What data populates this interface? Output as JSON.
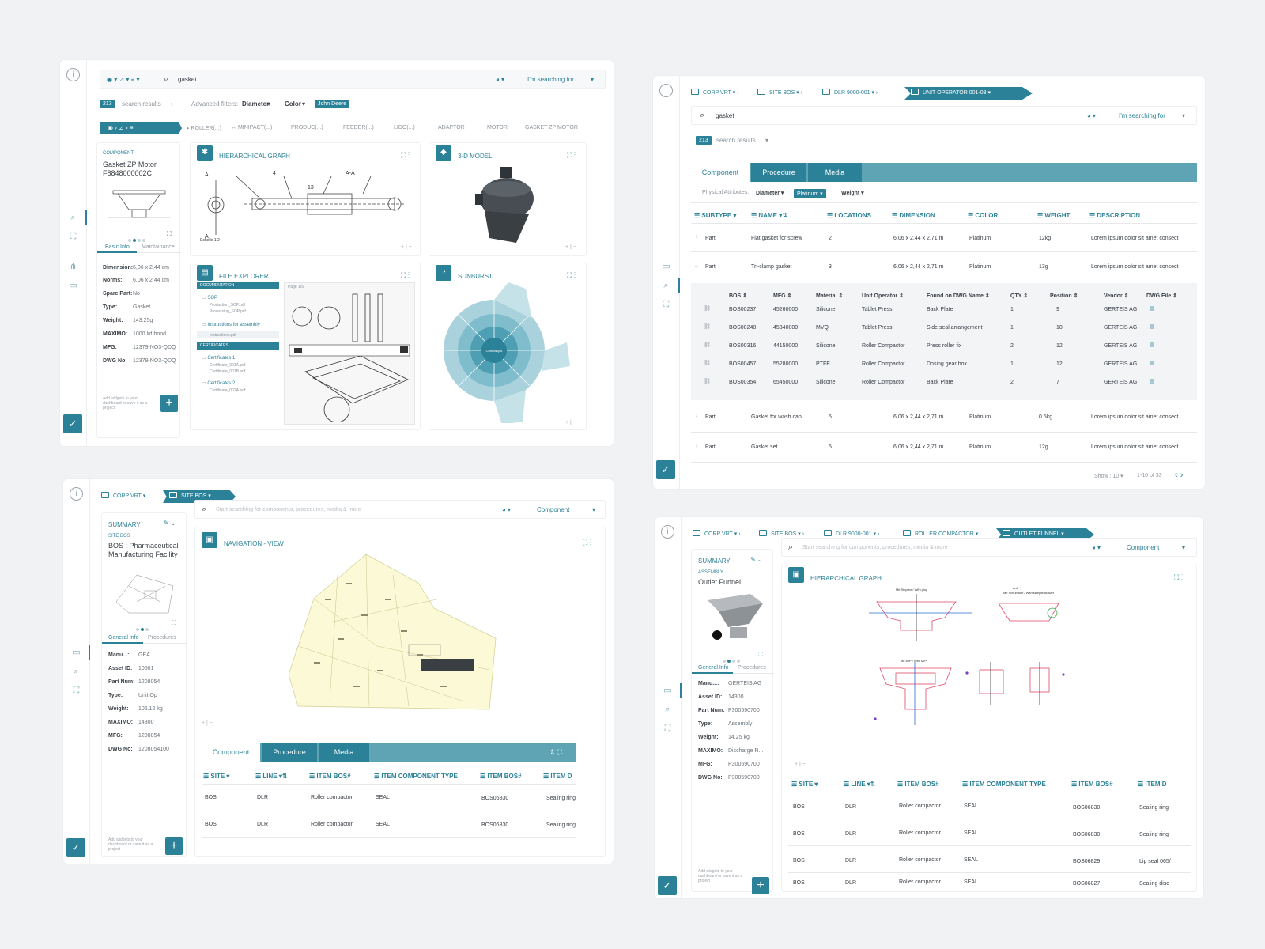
{
  "colors": {
    "accent": "#2b8197",
    "background": "#f1f2f4"
  },
  "p1": {
    "search": {
      "value": "gasket",
      "searching_for": "I'm searching for"
    },
    "results": {
      "count": "213",
      "label": "search results",
      "adv_label": "Advanced filters:",
      "filters": [
        "Diameter",
        "Color"
      ],
      "active_filter": "John Deere"
    },
    "crumbs": [
      "ROLLER(...)",
      "MINIPACT(...)",
      "PRODUC(...)",
      "FEEDER(...)",
      "LIDO(...)",
      "ADAPTOR",
      "MOTOR",
      "GASKET ZP MOTOR"
    ],
    "component": {
      "type": "COMPONENT",
      "title": "Gasket ZP Motor F8848000002C",
      "tabs": [
        "Basic Info",
        "Maintainance"
      ],
      "props": [
        [
          "Dimension:",
          "6,06 x 2,44 cm"
        ],
        [
          "Norms:",
          "6,06 x 2,44 cm"
        ],
        [
          "Spare Part:",
          "No"
        ],
        [
          "Type:",
          "Gasket"
        ],
        [
          "Weight:",
          "143.25g"
        ],
        [
          "MAXIMO:",
          "1000 lid bond"
        ],
        [
          "MFG:",
          "12379-NO3-QDQ"
        ],
        [
          "DWG No:",
          "12379-NO3-QDQ"
        ]
      ],
      "hint": "Add widgets to your dashboard or save it as a project"
    },
    "cards": {
      "graph": "HIERARCHICAL GRAPH",
      "model": "3-D MODEL",
      "files": "FILE EXPLORER",
      "sunburst": "SUNBURST"
    },
    "files": {
      "sec1": "DOCUMENTATION",
      "items1": [
        "SOP",
        "Production_SOP.pdf",
        "Processing_SOP.pdf",
        "Instructions for assembly",
        "Instructions.pdf"
      ],
      "sec2": "CERTIFICATES",
      "items2": [
        "Certificates 1",
        "Certificate_001A.pdf",
        "Certificate_001B.pdf",
        "Certificates 2",
        "Certificate_002A.pdf"
      ],
      "page": "Page 1/5"
    },
    "sunburst_center": "Company A"
  },
  "p2": {
    "crumbs": [
      "CORP VRT",
      "SITE BOS",
      "DLR 9000-001",
      "UNIT OPERATOR 001-03"
    ],
    "search": {
      "value": "gasket",
      "searching_for": "I'm searching for"
    },
    "results": {
      "count": "213",
      "label": "search results"
    },
    "tabs": [
      "Component",
      "Procedure",
      "Media"
    ],
    "physical": {
      "label": "Physical Attributes:",
      "filters": [
        "Diameter",
        "Weight"
      ],
      "active": "Platinum"
    },
    "headers": [
      "SUBTYPE",
      "NAME",
      "LOCATIONS",
      "DIMENSION",
      "COLOR",
      "WEIGHT",
      "DESCRIPTION"
    ],
    "rows": [
      {
        "subtype": "Part",
        "name": "Flat gasket for screw",
        "loc": "2",
        "dim": "6,06 x 2,44 x 2,71 m",
        "color": "Platinum",
        "weight": "12kg",
        "desc": "Lorem ipsum dolor sit amet consect"
      },
      {
        "subtype": "Part",
        "name": "Tri-clamp gasket",
        "loc": "3",
        "dim": "6,06 x 2,44 x 2,71 m",
        "color": "Platinum",
        "weight": "13g",
        "desc": "Lorem ipsum dolor sit amet consect"
      },
      {
        "subtype": "Part",
        "name": "Gasket for wash cap",
        "loc": "5",
        "dim": "6,06 x 2,44 x 2,71 m",
        "color": "Platinum",
        "weight": "0.5kg",
        "desc": "Lorem ipsum dolor sit amet consect"
      },
      {
        "subtype": "Part",
        "name": "Gasket set",
        "loc": "5",
        "dim": "6,06 x 2,44 x 2,71 m",
        "color": "Platinum",
        "weight": "12g",
        "desc": "Lorem ipsum dolor sit amet consect"
      }
    ],
    "sub_headers": [
      "BOS",
      "MFG",
      "Material",
      "Unit Operator",
      "Found on DWG Name",
      "QTY",
      "Position",
      "Vendor",
      "DWG File"
    ],
    "sub_rows": [
      [
        "BOS00237",
        "45260000",
        "Silicone",
        "Tablet Press",
        "Back Plate",
        "1",
        "9",
        "GERTEIS AG"
      ],
      [
        "BOS00248",
        "45340000",
        "MVQ",
        "Tablet Press",
        "Side seal arrangement",
        "1",
        "10",
        "GERTEIS AG"
      ],
      [
        "BOS00316",
        "44150000",
        "Silicone",
        "Roller Compactor",
        "Press roller fix",
        "2",
        "12",
        "GERTEIS AG"
      ],
      [
        "BOS00457",
        "55280000",
        "PTFE",
        "Roller Compactor",
        "Dosing gear box",
        "1",
        "12",
        "GERTEIS AG"
      ],
      [
        "BOS00354",
        "65450000",
        "Silicone",
        "Roller Compactor",
        "Back Plate",
        "2",
        "7",
        "GERTEIS AG"
      ]
    ],
    "pager": {
      "show": "Show : 10",
      "range": "1-10 of 33"
    }
  },
  "p3": {
    "crumbs": [
      "CORP VRT",
      "SITE BOS"
    ],
    "search": {
      "placeholder": "Start searching for components, procedures, media & more",
      "scope": "Component"
    },
    "summary": {
      "label": "SUMMARY",
      "type": "SITE BOS",
      "title": "BOS : Pharmaceutical Manufacturing Facility",
      "tabs": [
        "General Info",
        "Procedures"
      ],
      "props": [
        [
          "Manu...:",
          "GEA"
        ],
        [
          "Asset ID:",
          "10501"
        ],
        [
          "Part Num:",
          "1208054"
        ],
        [
          "Type:",
          "Unit Op"
        ],
        [
          "Weight:",
          "106.12 kg"
        ],
        [
          "MAXIMO:",
          "14300"
        ],
        [
          "MFG:",
          "1208054"
        ],
        [
          "DWG No:",
          "1208054100"
        ]
      ],
      "hint": "Add widgets to your dashboard or save it as a project"
    },
    "card": "NAVIGATION - VIEW",
    "tabs": [
      "Component",
      "Procedure",
      "Media"
    ],
    "headers": [
      "SITE",
      "LINE",
      "ITEM BOS#",
      "ITEM COMPONENT TYPE",
      "ITEM BOS#",
      "ITEM D"
    ],
    "rows": [
      [
        "BOS",
        "DLR",
        "Roller compactor",
        "SEAL",
        "BOS06830",
        "Sealing ring"
      ],
      [
        "BOS",
        "DLR",
        "Roller compactor",
        "SEAL",
        "BOS06830",
        "Sealing ring"
      ]
    ]
  },
  "p4": {
    "crumbs": [
      "CORP VRT",
      "SITE BOS",
      "DLR 9000-001",
      "ROLLER COMPACTOR",
      "OUTLET FUNNEL"
    ],
    "search": {
      "placeholder": "Start searching for components, procedures, media & more",
      "scope": "Component"
    },
    "summary": {
      "label": "SUMMARY",
      "type": "ASSEMBLY",
      "title": "Outlet Funnel",
      "tabs": [
        "General Info",
        "Procedures"
      ],
      "props": [
        [
          "Manu...:",
          "GERTEIS AG"
        ],
        [
          "Asset ID:",
          "14300"
        ],
        [
          "Part Num:",
          "P300590700"
        ],
        [
          "Type:",
          "Assembly"
        ],
        [
          "Weight:",
          "14.25 kg"
        ],
        [
          "MAXIMO:",
          "Discharge R..."
        ],
        [
          "MFG:",
          "P300590700"
        ],
        [
          "DWG No:",
          "P300590700"
        ]
      ],
      "hint": "Add widgets to your dashboard or save it as a project"
    },
    "card": "HIERARCHICAL GRAPH",
    "drawing_labels": [
      "Mit Stopfen / With plug",
      "A-A",
      "Mit Schublade / With sample drawer",
      "Mit MIP / With MIP"
    ],
    "headers": [
      "SITE",
      "LINE",
      "ITEM BOS#",
      "ITEM COMPONENT TYPE",
      "ITEM BOS#",
      "ITEM D"
    ],
    "rows": [
      [
        "BOS",
        "DLR",
        "Roller compactor",
        "SEAL",
        "BOS06830",
        "Sealing ring"
      ],
      [
        "BOS",
        "DLR",
        "Roller compactor",
        "SEAL",
        "BOS06830",
        "Sealing ring"
      ],
      [
        "BOS",
        "DLR",
        "Roller compactor",
        "SEAL",
        "BOS06829",
        "Lip seal 065/"
      ],
      [
        "BOS",
        "DLR",
        "Roller compactor",
        "SEAL",
        "BOS06827",
        "Sealing disc"
      ]
    ]
  }
}
